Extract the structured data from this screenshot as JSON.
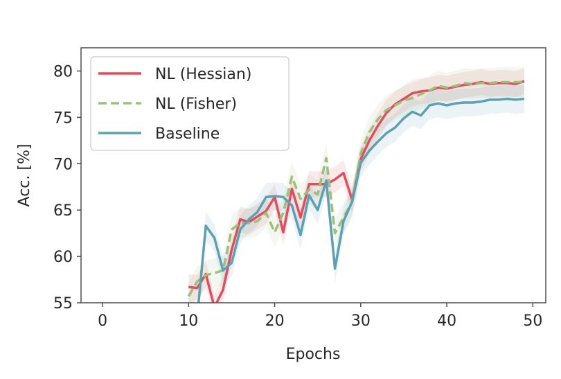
{
  "chart_data": {
    "type": "line",
    "title": "",
    "xlabel": "Epochs",
    "ylabel": "Acc. [%]",
    "xlim": [
      -2.5,
      51.5
    ],
    "ylim": [
      55,
      82.5
    ],
    "xticks": [
      0,
      10,
      20,
      30,
      40,
      50
    ],
    "yticks": [
      55,
      60,
      65,
      70,
      75,
      80
    ],
    "grid": false,
    "legend_position": "top-left",
    "x": [
      10,
      11,
      12,
      13,
      14,
      15,
      16,
      17,
      18,
      19,
      20,
      21,
      22,
      23,
      24,
      25,
      26,
      27,
      28,
      29,
      30,
      31,
      32,
      33,
      34,
      35,
      36,
      37,
      38,
      39,
      40,
      41,
      42,
      43,
      44,
      45,
      46,
      47,
      48,
      49
    ],
    "series": [
      {
        "name": "NL (Hessian)",
        "color": "#dd4f5f",
        "dash": "solid",
        "values": [
          56.7,
          56.6,
          58.1,
          54.5,
          56.4,
          60.7,
          64.0,
          63.7,
          64.3,
          64.9,
          66.4,
          62.6,
          67.3,
          64.2,
          67.8,
          67.8,
          67.8,
          68.3,
          69.0,
          66.1,
          70.5,
          72.5,
          74.1,
          75.5,
          76.4,
          77.0,
          77.6,
          77.8,
          77.9,
          78.2,
          78.1,
          78.3,
          78.5,
          78.6,
          78.8,
          78.6,
          78.7,
          78.7,
          78.6,
          78.9
        ],
        "band": 1.4
      },
      {
        "name": "NL (Fisher)",
        "color": "#9dbf7b",
        "dash": "dashed",
        "values": [
          55.7,
          57.3,
          58.0,
          58.2,
          58.5,
          62.9,
          63.6,
          63.6,
          63.8,
          64.7,
          62.6,
          64.7,
          68.6,
          66.2,
          67.2,
          66.7,
          70.6,
          62.5,
          64.2,
          65.9,
          71.1,
          73.4,
          74.8,
          75.8,
          76.3,
          76.8,
          77.1,
          77.5,
          77.9,
          78.4,
          78.2,
          78.4,
          78.7,
          78.6,
          78.7,
          78.7,
          78.8,
          78.8,
          78.8,
          78.8
        ],
        "band": 1.6
      },
      {
        "name": "Baseline",
        "color": "#5e9fb2",
        "dash": "solid",
        "values": [
          54.0,
          53.5,
          63.3,
          62.0,
          58.5,
          59.3,
          62.9,
          64.0,
          64.8,
          66.4,
          66.5,
          66.4,
          65.5,
          62.3,
          66.6,
          65.0,
          68.2,
          58.7,
          63.8,
          65.9,
          70.1,
          71.4,
          72.4,
          73.3,
          73.9,
          74.9,
          75.6,
          75.2,
          76.3,
          76.5,
          76.3,
          76.5,
          76.6,
          76.6,
          76.7,
          76.9,
          76.9,
          77.0,
          76.9,
          77.0
        ],
        "band": 1.5
      }
    ]
  }
}
